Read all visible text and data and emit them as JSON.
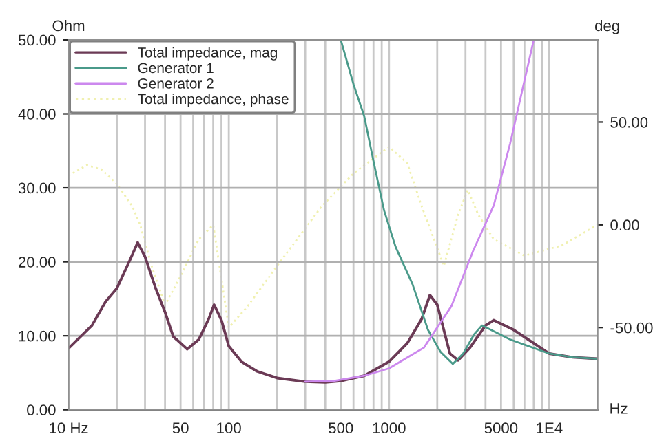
{
  "chart_data": {
    "type": "line",
    "ylabel": "Ohm",
    "y2label": "deg",
    "xlabel": "Hz",
    "log": "x",
    "xlim": [
      10,
      20000
    ],
    "ylim": [
      0,
      50
    ],
    "y2lim": [
      -90,
      90
    ],
    "xticks": [
      {
        "value": 10,
        "label": "10 Hz"
      },
      50,
      100,
      500,
      1000,
      5000,
      {
        "value": 10000,
        "label": "1E4"
      }
    ],
    "yticks": [
      {
        "value": 0,
        "label": "0.00"
      },
      {
        "value": 10,
        "label": "10.00"
      },
      {
        "value": 20,
        "label": "20.00"
      },
      {
        "value": 30,
        "label": "30.00"
      },
      {
        "value": 40,
        "label": "40.00"
      },
      {
        "value": 50,
        "label": "50.00"
      }
    ],
    "y2ticks": [
      {
        "value": -50,
        "label": "-50.00"
      },
      {
        "value": 0,
        "label": "0.00"
      },
      {
        "value": 50,
        "label": "50.00"
      }
    ],
    "grid": true,
    "legend": "top left",
    "series": [
      {
        "name": "Total impedance, mag",
        "color": "#6b3a55",
        "line_style": "solid",
        "x": [
          10,
          14,
          17,
          20,
          24,
          27,
          30,
          35,
          40,
          45,
          55,
          65,
          75,
          81,
          90,
          100,
          120,
          150,
          200,
          300,
          400,
          500,
          700,
          1000,
          1300,
          1600,
          1800,
          2000,
          2400,
          2700,
          3200,
          4000,
          4500,
          6000,
          8000,
          10000,
          14000,
          20000
        ],
        "values": [
          8.3,
          11.4,
          14.6,
          16.4,
          20.1,
          22.6,
          20.7,
          16.4,
          13.2,
          9.9,
          8.2,
          9.5,
          12.3,
          14.2,
          12.1,
          8.6,
          6.5,
          5.2,
          4.3,
          3.8,
          3.7,
          3.9,
          4.6,
          6.5,
          9.0,
          12.3,
          15.5,
          14.2,
          7.6,
          6.7,
          8.4,
          11.4,
          12.1,
          10.8,
          9.0,
          7.6,
          7.1,
          6.9
        ]
      },
      {
        "name": "Generator 1",
        "color": "#4a9a8a",
        "line_style": "solid",
        "x": [
          500,
          600,
          700,
          800,
          930,
          1100,
          1400,
          1750,
          2100,
          2500,
          2900,
          3400,
          3800,
          5700,
          10000,
          14000,
          20000
        ],
        "values": [
          50,
          44,
          39.7,
          33.6,
          27.0,
          22,
          17,
          10.8,
          7.8,
          6.2,
          7.6,
          10.2,
          11.4,
          9.5,
          7.6,
          7.1,
          6.9
        ]
      },
      {
        "name": "Generator 2",
        "color": "#cc88ee",
        "line_style": "solid",
        "x": [
          300,
          450,
          700,
          1000,
          1650,
          2450,
          3350,
          4500,
          5700,
          8000
        ],
        "values": [
          3.8,
          3.9,
          4.6,
          5.6,
          8.4,
          14,
          21.5,
          27.6,
          36,
          50
        ]
      },
      {
        "name": "Total impedance, phase",
        "color": "#f0f0b0",
        "line_style": "dotted",
        "axis": "y2",
        "x": [
          10,
          13,
          16,
          20,
          25,
          28,
          33,
          40,
          50,
          65,
          80,
          100,
          130,
          200,
          380,
          600,
          1000,
          1300,
          1600,
          2200,
          2700,
          3100,
          3600,
          4500,
          7000,
          12000,
          20000
        ],
        "values": [
          24,
          29,
          27,
          20,
          9,
          0,
          -20,
          -39,
          -25,
          -7,
          0,
          -50,
          -40,
          -20,
          9,
          25,
          38,
          30,
          9,
          -20,
          5,
          17,
          5,
          -7,
          -15,
          -10,
          0
        ]
      }
    ]
  }
}
